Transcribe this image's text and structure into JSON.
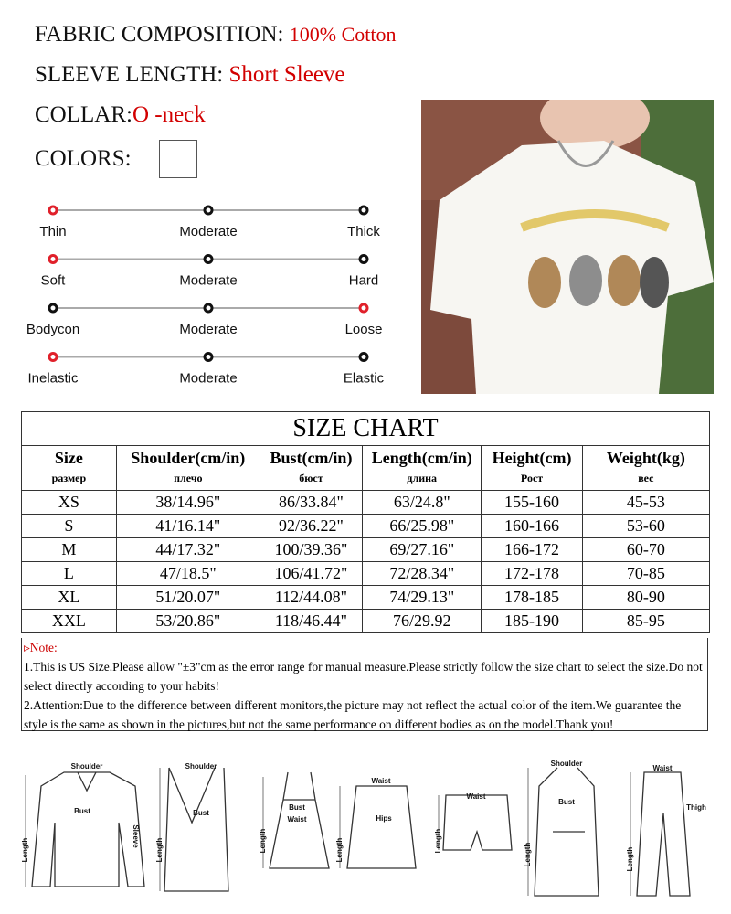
{
  "specs": [
    {
      "label": "FABRIC COMPOSITION:",
      "value": "100% Cotton"
    },
    {
      "label": "SLEEVE LENGTH:",
      "value": "Short Sleeve"
    },
    {
      "label": "COLLAR:",
      "value": "O -neck"
    }
  ],
  "colors_label": "COLORS:",
  "scales": [
    {
      "labels": [
        "Thin",
        "Moderate",
        "Thick"
      ],
      "selected": 0
    },
    {
      "labels": [
        "Soft",
        "Moderate",
        "Hard"
      ],
      "selected": 0
    },
    {
      "labels": [
        "Bodycon",
        "Moderate",
        "Loose"
      ],
      "selected": 2
    },
    {
      "labels": [
        "Inelastic",
        "Moderate",
        "Elastic"
      ],
      "selected": 0
    }
  ],
  "size_chart": {
    "title": "SIZE  CHART",
    "header": [
      [
        "Size",
        "размер"
      ],
      [
        "Shoulder(cm/in)",
        "плечо"
      ],
      [
        "Bust(cm/in)",
        "бюст"
      ],
      [
        "Length(cm/in)",
        "длина"
      ],
      [
        "Height(cm)",
        "Рост"
      ],
      [
        "Weight(kg)",
        "вес"
      ]
    ],
    "rows": [
      [
        "XS",
        "38/14.96\"",
        "86/33.84\"",
        "63/24.8\"",
        "155-160",
        "45-53"
      ],
      [
        "S",
        "41/16.14\"",
        "92/36.22\"",
        "66/25.98\"",
        "160-166",
        "53-60"
      ],
      [
        "M",
        "44/17.32\"",
        "100/39.36\"",
        "69/27.16\"",
        "166-172",
        "60-70"
      ],
      [
        "L",
        "47/18.5\"",
        "106/41.72\"",
        "72/28.34\"",
        "172-178",
        "70-85"
      ],
      [
        "XL",
        "51/20.07\"",
        "112/44.08\"",
        "74/29.13\"",
        "178-185",
        "80-90"
      ],
      [
        "XXL",
        "53/20.86\"",
        "118/46.44\"",
        "76/29.92",
        "185-190",
        "85-95"
      ]
    ],
    "notes": [
      "▹Note:",
      "1.This is US Size.Please allow \"±3\"cm as the error range for manual measure.Please strictly follow the size chart to select the size.Do not select directly according to your habits!",
      "2.Attention:Due to the difference between different monitors,the picture may not reflect the actual color of the item.We guarantee the style is the same as shown in the pictures,but not the same performance on different bodies as on the model.Thank you!"
    ]
  },
  "diagrams": [
    {
      "labels": [
        "Shoulder",
        "Bust",
        "Sleeve",
        "Length"
      ]
    },
    {
      "labels": [
        "Shoulder",
        "Bust",
        "Length"
      ]
    },
    {
      "labels": [
        "Bust",
        "Waist",
        "Length"
      ]
    },
    {
      "labels": [
        "Waist",
        "Hips",
        "Length"
      ]
    },
    {
      "labels": [
        "Waist",
        "Length"
      ]
    },
    {
      "labels": [
        "Shoulder",
        "Bust",
        "Length"
      ]
    },
    {
      "labels": [
        "Waist",
        "Thigh",
        "Length"
      ]
    }
  ]
}
